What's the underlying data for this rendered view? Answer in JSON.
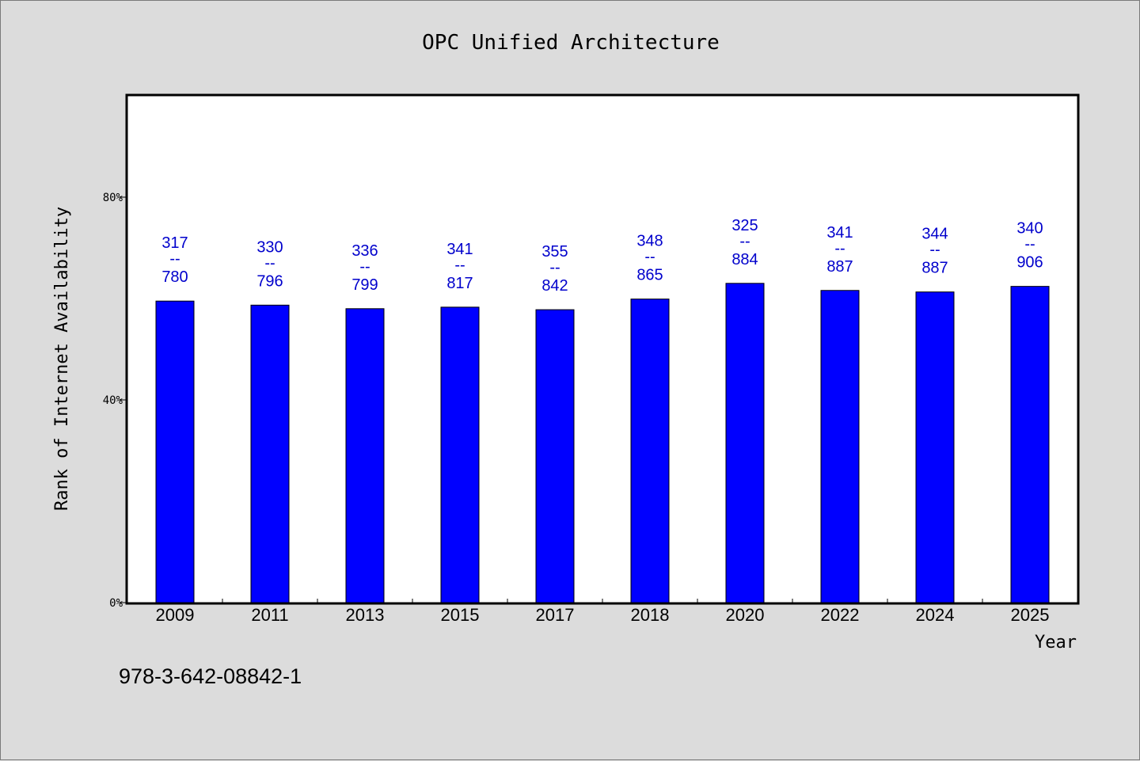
{
  "chart_data": {
    "type": "bar",
    "title": "OPC Unified Architecture",
    "xlabel": "Year",
    "ylabel": "Rank of Internet Availability",
    "categories": [
      "2009",
      "2011",
      "2013",
      "2015",
      "2017",
      "2018",
      "2020",
      "2022",
      "2024",
      "2025"
    ],
    "values": [
      59.5,
      58.7,
      58.0,
      58.3,
      57.8,
      59.9,
      63.0,
      61.6,
      61.3,
      62.4
    ],
    "data_labels": [
      {
        "top": "317",
        "sep": "--",
        "bottom": "780"
      },
      {
        "top": "330",
        "sep": "--",
        "bottom": "796"
      },
      {
        "top": "336",
        "sep": "--",
        "bottom": "799"
      },
      {
        "top": "341",
        "sep": "--",
        "bottom": "817"
      },
      {
        "top": "355",
        "sep": "--",
        "bottom": "842"
      },
      {
        "top": "348",
        "sep": "--",
        "bottom": "865"
      },
      {
        "top": "325",
        "sep": "--",
        "bottom": "884"
      },
      {
        "top": "341",
        "sep": "--",
        "bottom": "887"
      },
      {
        "top": "344",
        "sep": "--",
        "bottom": "887"
      },
      {
        "top": "340",
        "sep": "--",
        "bottom": "906"
      }
    ],
    "ylim": [
      0,
      100
    ],
    "yticks": [
      0,
      40,
      80
    ],
    "ytick_labels": [
      "0%",
      "40%",
      "80%"
    ],
    "grid": false,
    "legend": "none",
    "bar_color": "#0000ff",
    "label_color": "#0000cc"
  },
  "footer": {
    "isbn": "978-3-642-08842-1"
  }
}
